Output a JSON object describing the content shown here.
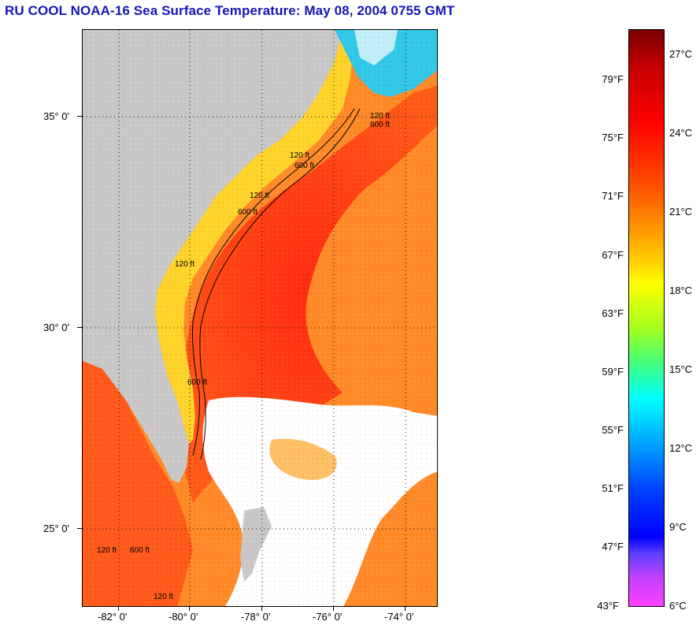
{
  "title": "RU COOL  NOAA-16  Sea Surface Temperature:  May 08, 2004 0755 GMT",
  "map": {
    "latitude_labels": [
      "35° 0'",
      "30° 0'",
      "25° 0'"
    ],
    "longitude_labels": [
      "-82° 0'",
      "-80° 0'",
      "-78° 0'",
      "-76° 0'",
      "-74° 0'"
    ],
    "isobath_labels": [
      "120 ft",
      "600 ft",
      "120 ft",
      "600 ft",
      "120 ft",
      "600 ft",
      "120 ft",
      "600 ft",
      "120 ft",
      "600 ft",
      "120 ft"
    ],
    "colors": {
      "land": "#c8c8c8",
      "cloud": "#ffffff",
      "gulf_stream": "#ff3010",
      "offshore": "#ff8020",
      "shelf": "#ffd020",
      "cold_water": "#20c0ff"
    }
  },
  "colorbar": {
    "fahrenheit_labels": [
      "79°F",
      "75°F",
      "71°F",
      "67°F",
      "63°F",
      "59°F",
      "55°F",
      "51°F",
      "47°F",
      "43°F"
    ],
    "celsius_labels": [
      "27°C",
      "24°C",
      "21°C",
      "18°C",
      "15°C",
      "12°C",
      "9°C",
      "6°C"
    ],
    "range_f": [
      43,
      82
    ],
    "range_c": [
      6,
      28
    ]
  }
}
